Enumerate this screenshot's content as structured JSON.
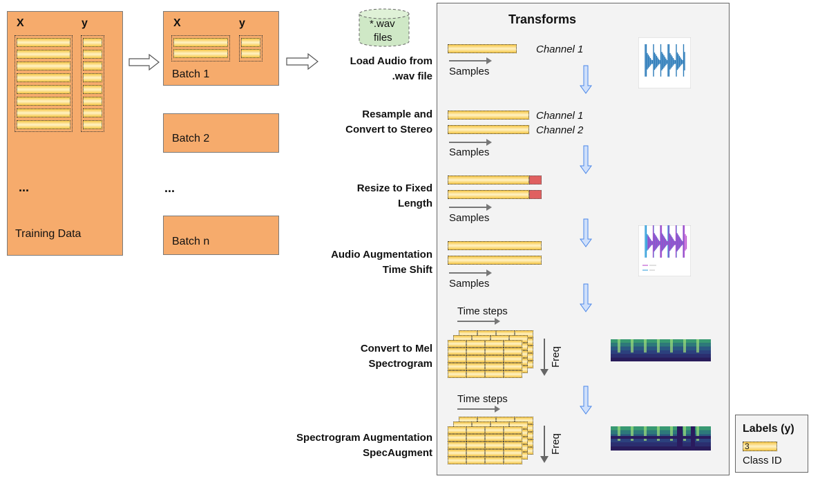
{
  "training": {
    "x_label": "X",
    "y_label": "y",
    "ellipsis": "...",
    "caption": "Training Data"
  },
  "batch1": {
    "x_label": "X",
    "y_label": "y",
    "caption": "Batch 1"
  },
  "batch2": {
    "caption": "Batch 2"
  },
  "batch_ellipsis": "...",
  "batchn": {
    "caption": "Batch n"
  },
  "wav": {
    "line1": "*.wav",
    "line2": "files"
  },
  "transforms": {
    "title": "Transforms",
    "steps": [
      {
        "label_lines": [
          "Load Audio from",
          ".wav file"
        ],
        "samples": "Samples",
        "channels": [
          "Channel 1"
        ]
      },
      {
        "label_lines": [
          "Resample and",
          "Convert to Stereo"
        ],
        "samples": "Samples",
        "channels": [
          "Channel 1",
          "Channel 2"
        ]
      },
      {
        "label_lines": [
          "Resize to Fixed",
          "Length"
        ],
        "samples": "Samples"
      },
      {
        "label_lines": [
          "Audio Augmentation",
          "Time Shift"
        ],
        "samples": "Samples"
      },
      {
        "label_lines": [
          "Convert to Mel",
          "Spectrogram"
        ],
        "time_steps": "Time steps",
        "freq": "Freq"
      },
      {
        "label_lines": [
          "Spectrogram Augmentation",
          "SpecAugment"
        ],
        "time_steps": "Time steps",
        "freq": "Freq"
      }
    ]
  },
  "labels_box": {
    "title": "Labels (y)",
    "value": "3",
    "caption": "Class ID"
  },
  "colors": {
    "orange": "#f6ab6c",
    "strip": "#f7c84a",
    "red": "#e06060",
    "arrow_blue": "#4a86e8"
  }
}
